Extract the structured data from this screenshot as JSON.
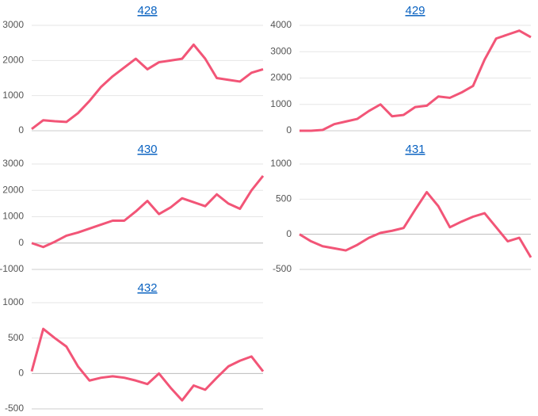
{
  "chart_data": [
    {
      "type": "line",
      "title": "428",
      "color": "#f25577",
      "grid": true,
      "ylim": [
        0,
        3000
      ],
      "yticks": [
        0,
        1000,
        2000,
        3000
      ],
      "values": [
        50,
        300,
        270,
        250,
        500,
        850,
        1250,
        1550,
        1800,
        2050,
        1750,
        1950,
        2000,
        2050,
        2450,
        2050,
        1500,
        1450,
        1400,
        1650,
        1750
      ]
    },
    {
      "type": "line",
      "title": "429",
      "color": "#f25577",
      "grid": true,
      "ylim": [
        0,
        4000
      ],
      "yticks": [
        0,
        1000,
        2000,
        3000,
        4000
      ],
      "values": [
        0,
        0,
        30,
        250,
        350,
        450,
        750,
        1000,
        550,
        600,
        900,
        950,
        1300,
        1250,
        1450,
        1700,
        2700,
        3500,
        3650,
        3800,
        3550
      ]
    },
    {
      "type": "line",
      "title": "430",
      "color": "#f25577",
      "grid": true,
      "ylim": [
        -1000,
        3000
      ],
      "yticks": [
        -1000,
        0,
        1000,
        2000,
        3000
      ],
      "values": [
        0,
        -150,
        50,
        280,
        400,
        550,
        700,
        850,
        850,
        1200,
        1600,
        1100,
        1350,
        1700,
        1550,
        1400,
        1850,
        1500,
        1300,
        2000,
        2550
      ]
    },
    {
      "type": "line",
      "title": "431",
      "color": "#f25577",
      "grid": true,
      "ylim": [
        -500,
        1000
      ],
      "yticks": [
        -500,
        0,
        500,
        1000
      ],
      "values": [
        0,
        -100,
        -170,
        -200,
        -230,
        -150,
        -50,
        20,
        50,
        90,
        350,
        600,
        400,
        100,
        180,
        250,
        300,
        100,
        -100,
        -50,
        -330
      ]
    },
    {
      "type": "line",
      "title": "432",
      "color": "#f25577",
      "grid": true,
      "ylim": [
        -500,
        1000
      ],
      "yticks": [
        -500,
        0,
        500,
        1000
      ],
      "values": [
        30,
        630,
        500,
        380,
        100,
        -100,
        -60,
        -40,
        -60,
        -100,
        -150,
        0,
        -200,
        -380,
        -170,
        -230,
        -60,
        100,
        180,
        240,
        30
      ]
    }
  ]
}
